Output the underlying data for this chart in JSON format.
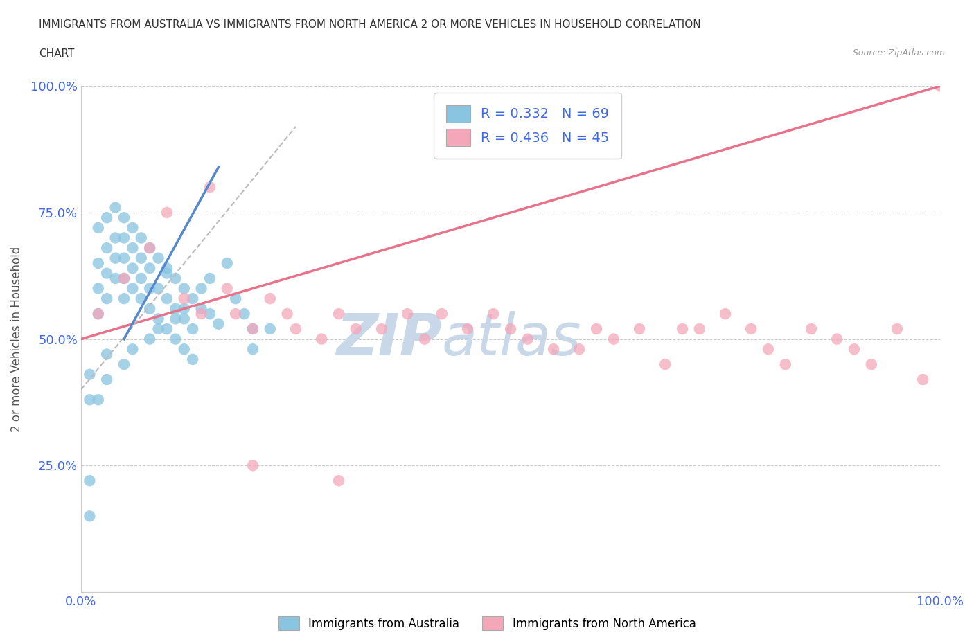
{
  "title_line1": "IMMIGRANTS FROM AUSTRALIA VS IMMIGRANTS FROM NORTH AMERICA 2 OR MORE VEHICLES IN HOUSEHOLD CORRELATION",
  "title_line2": "CHART",
  "source": "Source: ZipAtlas.com",
  "ylabel": "2 or more Vehicles in Household",
  "xlim": [
    0,
    100
  ],
  "ylim": [
    0,
    100
  ],
  "xtick_labels": [
    "0.0%",
    "100.0%"
  ],
  "ytick_labels": [
    "25.0%",
    "50.0%",
    "75.0%",
    "100.0%"
  ],
  "ytick_positions": [
    25,
    50,
    75,
    100
  ],
  "legend_label1": "Immigrants from Australia",
  "legend_label2": "Immigrants from North America",
  "R1": 0.332,
  "N1": 69,
  "R2": 0.436,
  "N2": 45,
  "color1": "#89C4E1",
  "color2": "#F4A7B9",
  "trendline1_color": "#5588CC",
  "trendline2_color": "#E8728A",
  "trendline1_dash": [
    6,
    4
  ],
  "trendline1_gray": "#AAAAAA",
  "watermark_zip": "ZIP",
  "watermark_atlas": "atlas",
  "watermark_color": "#c8d8e8",
  "blue_label_color": "#4169E1",
  "australia_x": [
    1,
    1,
    2,
    2,
    2,
    3,
    3,
    3,
    4,
    4,
    4,
    5,
    5,
    5,
    5,
    6,
    6,
    6,
    7,
    7,
    7,
    8,
    8,
    8,
    9,
    9,
    10,
    10,
    10,
    11,
    11,
    12,
    12,
    13,
    13,
    14,
    15,
    15,
    16,
    17,
    18,
    19,
    20,
    2,
    3,
    4,
    5,
    6,
    7,
    8,
    9,
    10,
    11,
    12,
    13,
    14,
    1,
    1,
    2,
    3,
    3,
    5,
    6,
    8,
    9,
    11,
    12,
    20,
    22
  ],
  "australia_y": [
    15,
    22,
    55,
    60,
    65,
    58,
    63,
    68,
    62,
    66,
    70,
    58,
    62,
    66,
    70,
    60,
    64,
    68,
    58,
    62,
    66,
    56,
    60,
    64,
    54,
    60,
    52,
    58,
    63,
    50,
    56,
    48,
    54,
    46,
    52,
    60,
    55,
    62,
    53,
    65,
    58,
    55,
    52,
    72,
    74,
    76,
    74,
    72,
    70,
    68,
    66,
    64,
    62,
    60,
    58,
    56,
    38,
    43,
    38,
    42,
    47,
    45,
    48,
    50,
    52,
    54,
    56,
    48,
    52
  ],
  "north_america_x": [
    2,
    5,
    8,
    10,
    12,
    14,
    15,
    17,
    18,
    20,
    22,
    24,
    25,
    28,
    30,
    32,
    35,
    38,
    40,
    42,
    45,
    48,
    50,
    52,
    55,
    58,
    60,
    62,
    65,
    68,
    70,
    72,
    75,
    78,
    80,
    82,
    85,
    88,
    90,
    92,
    95,
    98,
    100,
    20,
    30
  ],
  "north_america_y": [
    55,
    62,
    68,
    75,
    58,
    55,
    80,
    60,
    55,
    52,
    58,
    55,
    52,
    50,
    55,
    52,
    52,
    55,
    50,
    55,
    52,
    55,
    52,
    50,
    48,
    48,
    52,
    50,
    52,
    45,
    52,
    52,
    55,
    52,
    48,
    45,
    52,
    50,
    48,
    45,
    52,
    42,
    100,
    25,
    22
  ]
}
